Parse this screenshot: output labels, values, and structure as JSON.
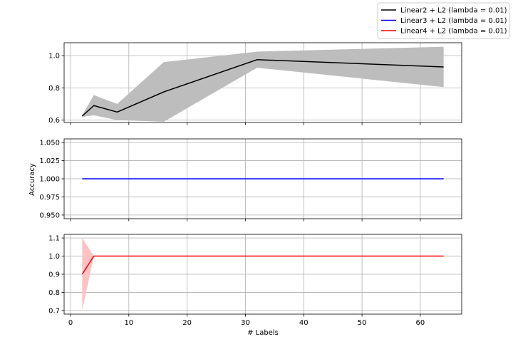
{
  "chart_data": {
    "type": "line",
    "xlabel": "# Labels",
    "ylabel": "Accuracy",
    "xlim": [
      -1.1,
      67.1
    ],
    "x_ticks": [
      0,
      10,
      20,
      30,
      40,
      50,
      60
    ],
    "grid": true,
    "legend": {
      "placement": "top-right",
      "entries": [
        {
          "label": "Linear2 + L2 (lambda = 0.01)",
          "color": "#000000"
        },
        {
          "label": "Linear3 + L2 (lambda = 0.01)",
          "color": "#0000ff"
        },
        {
          "label": "Linear4 + L2 (lambda = 0.01)",
          "color": "#ff0000"
        }
      ]
    },
    "panels": [
      {
        "series_name": "Linear2 + L2 (lambda = 0.01)",
        "color": "#000000",
        "band_color": "#bdbdbd",
        "ylim": [
          0.585,
          1.08
        ],
        "y_ticks": [
          0.6,
          0.8,
          1.0
        ],
        "y_tick_labels": [
          "0.6",
          "0.8",
          "1.0"
        ],
        "x": [
          2,
          4,
          8,
          16,
          32,
          64
        ],
        "y": [
          0.625,
          0.69,
          0.65,
          0.775,
          0.975,
          0.93
        ],
        "lower": [
          0.62,
          0.63,
          0.6,
          0.59,
          0.925,
          0.805
        ],
        "upper": [
          0.63,
          0.755,
          0.7,
          0.96,
          1.025,
          1.055
        ]
      },
      {
        "series_name": "Linear3 + L2 (lambda = 0.01)",
        "color": "#0000ff",
        "band_color": "#b3b3ff",
        "ylim": [
          0.945,
          1.055
        ],
        "y_ticks": [
          0.95,
          0.975,
          1.0,
          1.025,
          1.05
        ],
        "y_tick_labels": [
          "0.950",
          "0.975",
          "1.000",
          "1.025",
          "1.050"
        ],
        "x": [
          2,
          4,
          8,
          16,
          32,
          64
        ],
        "y": [
          1.0,
          1.0,
          1.0,
          1.0,
          1.0,
          1.0
        ],
        "lower": [
          1.0,
          1.0,
          1.0,
          1.0,
          1.0,
          1.0
        ],
        "upper": [
          1.0,
          1.0,
          1.0,
          1.0,
          1.0,
          1.0
        ]
      },
      {
        "series_name": "Linear4 + L2 (lambda = 0.01)",
        "color": "#ff0000",
        "band_color": "#ffc2c2",
        "ylim": [
          0.68,
          1.12
        ],
        "y_ticks": [
          0.7,
          0.8,
          0.9,
          1.0,
          1.1
        ],
        "y_tick_labels": [
          "0.7",
          "0.8",
          "0.9",
          "1.0",
          "1.1"
        ],
        "x": [
          2,
          4,
          8,
          16,
          32,
          64
        ],
        "y": [
          0.9,
          1.0,
          1.0,
          1.0,
          1.0,
          1.0
        ],
        "lower": [
          0.7,
          1.0,
          1.0,
          1.0,
          1.0,
          1.0
        ],
        "upper": [
          1.1,
          1.0,
          1.0,
          1.0,
          1.0,
          1.0
        ]
      }
    ]
  }
}
